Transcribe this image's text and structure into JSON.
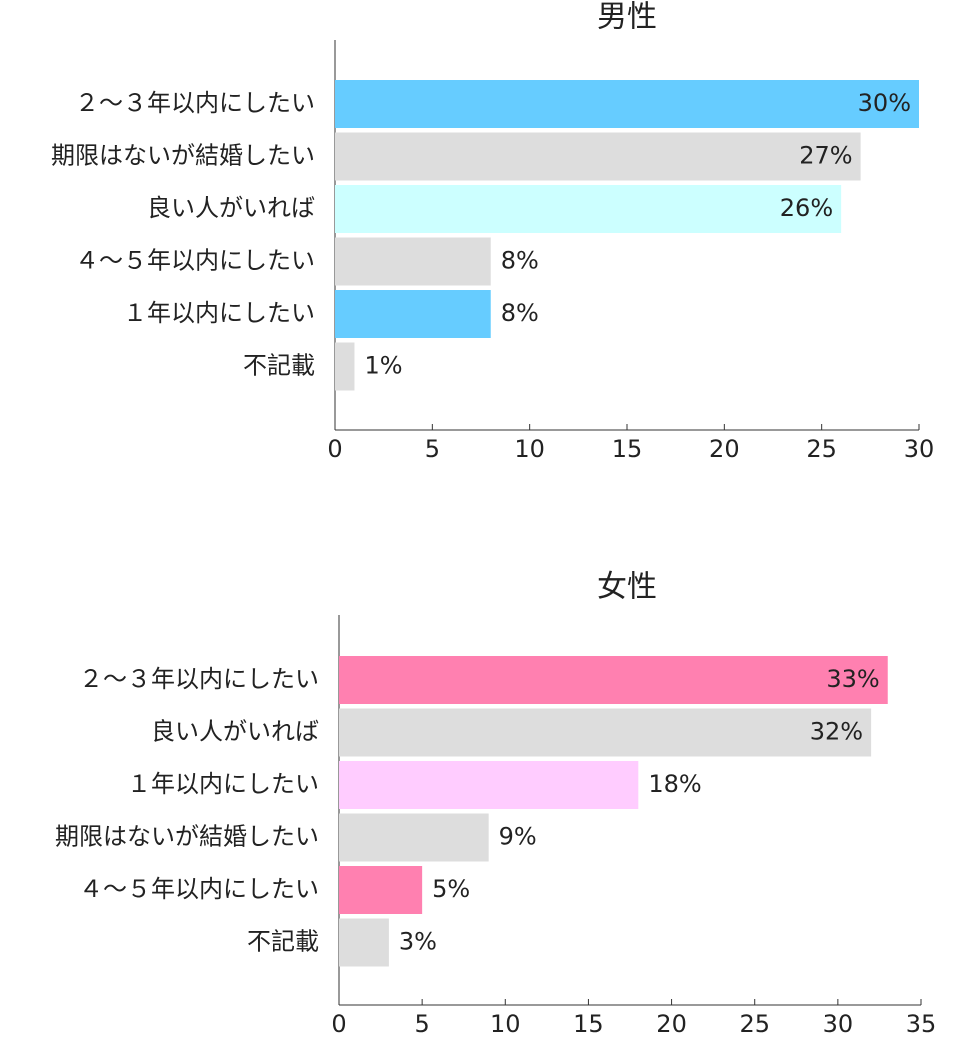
{
  "chart_data": [
    {
      "type": "bar",
      "orientation": "horizontal",
      "title": "男性",
      "categories": [
        "２～３年以内にしたい",
        "期限はないが結婚したい",
        "良い人がいれば",
        "４～５年以内にしたい",
        "１年以内にしたい",
        "不記載"
      ],
      "values": [
        30,
        27,
        26,
        8,
        8,
        1
      ],
      "value_labels": [
        "30%",
        "27%",
        "26%",
        "8%",
        "8%",
        "1%"
      ],
      "colors": [
        "#66ccff",
        "#dddddd",
        "#ccffff",
        "#dddddd",
        "#66ccff",
        "#dddddd"
      ],
      "xlim": [
        0,
        30
      ],
      "xticks": [
        0,
        5,
        10,
        15,
        20,
        25,
        30
      ]
    },
    {
      "type": "bar",
      "orientation": "horizontal",
      "title": "女性",
      "categories": [
        "２～３年以内にしたい",
        "良い人がいれば",
        "１年以内にしたい",
        "期限はないが結婚したい",
        "４～５年以内にしたい",
        "不記載"
      ],
      "values": [
        33,
        32,
        18,
        9,
        5,
        3
      ],
      "value_labels": [
        "33%",
        "32%",
        "18%",
        "9%",
        "5%",
        "3%"
      ],
      "colors": [
        "#ff80b0",
        "#dddddd",
        "#ffccff",
        "#dddddd",
        "#ff80b0",
        "#dddddd"
      ],
      "xlim": [
        0,
        35
      ],
      "xticks": [
        0,
        5,
        10,
        15,
        20,
        25,
        30,
        35
      ]
    }
  ]
}
